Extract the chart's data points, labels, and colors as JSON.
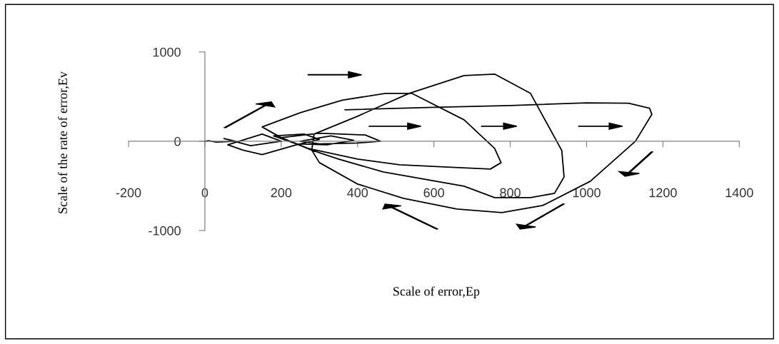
{
  "chart_data": {
    "type": "line",
    "xlabel": "Scale of error,Ep",
    "ylabel": "Scale of the rate of error,Ev",
    "xlim": [
      -200,
      1400
    ],
    "xticks": [
      -200,
      0,
      200,
      400,
      600,
      800,
      1000,
      1200,
      1400
    ],
    "ylim": [
      -1000,
      1000
    ],
    "yticks": [
      -1000,
      0,
      1000
    ],
    "legend": false,
    "marker": "none",
    "line_style": "solid",
    "series": [
      {
        "color": "#000000",
        "x": [
          367,
          600,
          800,
          1000,
          1110,
          1165,
          1171,
          1128,
          1010,
          885,
          778,
          660,
          520,
          400,
          300,
          280,
          286,
          400,
          535,
          679,
          759,
          853,
          935,
          941,
          916,
          853,
          759,
          679,
          467,
          350,
          280,
          200,
          150,
          250,
          360,
          473,
          542,
          679,
          759,
          776,
          748,
          636,
          510,
          400,
          270,
          200,
          300,
          420,
          460,
          400,
          300,
          250,
          330,
          390,
          320,
          240,
          180,
          260,
          300,
          240,
          150,
          100,
          60,
          150,
          200,
          120,
          50,
          80,
          30,
          10,
          0
        ],
        "values": [
          352,
          380,
          400,
          430,
          425,
          370,
          300,
          0,
          -448,
          -720,
          -800,
          -760,
          -640,
          -480,
          -240,
          -100,
          80,
          280,
          536,
          736,
          752,
          536,
          -104,
          -400,
          -584,
          -632,
          -632,
          -504,
          -344,
          -200,
          -100,
          40,
          160,
          320,
          460,
          536,
          536,
          240,
          -80,
          -240,
          -312,
          -290,
          -264,
          -200,
          -80,
          40,
          90,
          70,
          0,
          -20,
          -30,
          0,
          60,
          10,
          -40,
          -30,
          60,
          80,
          20,
          -40,
          -150,
          -100,
          -40,
          80,
          0,
          -50,
          30,
          0,
          -10,
          5,
          0
        ]
      }
    ]
  }
}
